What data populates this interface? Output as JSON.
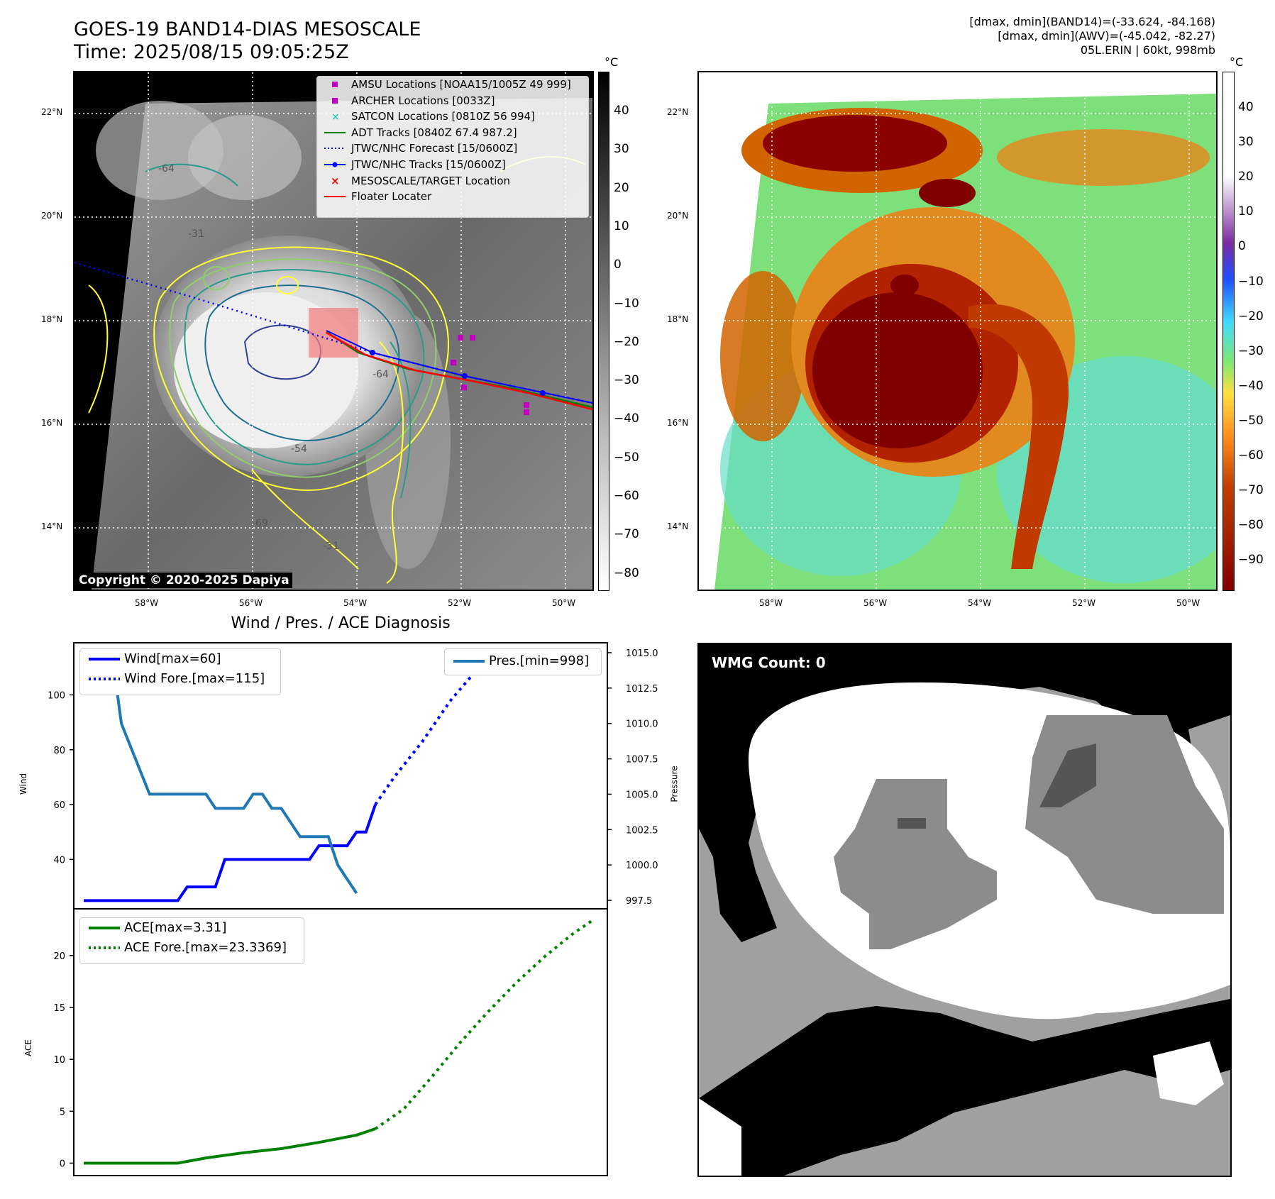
{
  "header": {
    "title_line1": "GOES-19 BAND14-DIAS MESOSCALE",
    "title_line2": "Time: 2025/08/15 09:05:25Z",
    "info_line1": "[dmax, dmin](BAND14)=(-33.624, -84.168)",
    "info_line2": "[dmax, dmin](AWV)=(-45.042, -82.27)",
    "info_line3": "05L.ERIN | 60kt, 998mb"
  },
  "ir_panel": {
    "copyright": "Copyright © 2020-2025 Dapiya",
    "colorbar_unit": "°C",
    "colorbar_ticks": [
      "40",
      "30",
      "20",
      "10",
      "0",
      "−10",
      "−20",
      "−30",
      "−40",
      "−50",
      "−60",
      "−70",
      "−80"
    ],
    "lat_labels": [
      "22°N",
      "20°N",
      "18°N",
      "16°N",
      "14°N"
    ],
    "lon_labels": [
      "58°W",
      "56°W",
      "54°W",
      "52°W",
      "50°W"
    ],
    "contour_labels": [
      "-64",
      "-54",
      "-31",
      "-64",
      "-31",
      "-54",
      "-31",
      "-69"
    ],
    "legend": [
      {
        "label": "AMSU Locations [NOAA15/1005Z 49 999]",
        "symbol": "square",
        "color": "#c000c0"
      },
      {
        "label": "ARCHER Locations [0033Z]",
        "symbol": "square",
        "color": "#c000c0"
      },
      {
        "label": "SATCON Locations [0810Z 56 994]",
        "symbol": "x",
        "color": "#00bfbf"
      },
      {
        "label": "ADT Tracks [0840Z 67.4 987.2]",
        "symbol": "line",
        "color": "#008000"
      },
      {
        "label": "JTWC/NHC Forecast [15/0600Z]",
        "symbol": "dotted",
        "color": "#0000ff"
      },
      {
        "label": "JTWC/NHC Tracks [15/0600Z]",
        "symbol": "line-dot",
        "color": "#0000ff"
      },
      {
        "label": "MESOSCALE/TARGET Location",
        "symbol": "x",
        "color": "#ff0000"
      },
      {
        "label": "Floater Locater",
        "symbol": "line",
        "color": "#ff0000"
      }
    ]
  },
  "wv_panel": {
    "colorbar_unit": "°C",
    "colorbar_ticks": [
      "40",
      "30",
      "20",
      "10",
      "0",
      "−10",
      "−20",
      "−30",
      "−40",
      "−50",
      "−60",
      "−70",
      "−80",
      "−90"
    ],
    "lat_labels": [
      "22°N",
      "20°N",
      "18°N",
      "16°N",
      "14°N"
    ],
    "lon_labels": [
      "58°W",
      "56°W",
      "54°W",
      "52°W",
      "50°W"
    ]
  },
  "wmg_panel": {
    "label": "WMG Count: 0"
  },
  "colors": {
    "wind": "#0000ff",
    "pressure": "#1f77b4",
    "ace": "#008000"
  },
  "chart_data": [
    {
      "type": "line",
      "title": "Wind / Pres. / ACE Diagnosis",
      "ylabel": "Wind",
      "y2label": "Pressure",
      "ylim": [
        22,
        119
      ],
      "y2lim": [
        996.9,
        1015.7
      ],
      "yticks": [
        "40",
        "60",
        "80",
        "100"
      ],
      "y2ticks": [
        "997.5",
        "1000.0",
        "1002.5",
        "1005.0",
        "1007.5",
        "1010.0",
        "1012.5",
        "1015.0"
      ],
      "x_range": [
        0,
        54
      ],
      "series": [
        {
          "name": "Wind[max=60]",
          "axis": "left",
          "style": "solid",
          "x": [
            0,
            10,
            11,
            14,
            15,
            15,
            24,
            25,
            28,
            29,
            30,
            31
          ],
          "values": [
            25,
            25,
            30,
            30,
            40,
            40,
            40,
            45,
            45,
            50,
            50,
            60
          ]
        },
        {
          "name": "Wind Fore.[max=115]",
          "axis": "left",
          "style": "dotted",
          "x": [
            31,
            33,
            36,
            39,
            42,
            45,
            48,
            51,
            54
          ],
          "values": [
            60,
            70,
            83,
            98,
            110,
            115,
            112,
            111,
            110
          ]
        },
        {
          "name": "Pres.[min=998]",
          "axis": "right",
          "style": "solid",
          "x": [
            2,
            3,
            4,
            7,
            13,
            14,
            17,
            18,
            19,
            20,
            21,
            22,
            23,
            25,
            26,
            27,
            28,
            29
          ],
          "values": [
            1015,
            1015,
            1010,
            1005,
            1005,
            1004,
            1004,
            1005,
            1005,
            1004,
            1004,
            1003,
            1002,
            1002,
            1002,
            1000,
            999,
            998
          ]
        }
      ]
    },
    {
      "type": "line",
      "ylabel": "ACE",
      "ylim": [
        -1.2,
        24.5
      ],
      "yticks": [
        "0",
        "5",
        "10",
        "15",
        "20"
      ],
      "x_range": [
        0,
        54
      ],
      "series": [
        {
          "name": "ACE[max=3.31]",
          "style": "solid",
          "x": [
            0,
            5,
            10,
            13,
            17,
            21,
            25,
            29,
            31
          ],
          "values": [
            0,
            0,
            0,
            0.5,
            1.0,
            1.4,
            2.0,
            2.7,
            3.31
          ]
        },
        {
          "name": "ACE Fore.[max=23.3369]",
          "style": "dotted",
          "x": [
            31,
            34,
            37,
            40,
            43,
            46,
            49,
            52,
            54
          ],
          "values": [
            3.31,
            5.2,
            8.3,
            11.6,
            14.6,
            17.4,
            19.9,
            22.1,
            23.3369
          ]
        }
      ]
    }
  ]
}
